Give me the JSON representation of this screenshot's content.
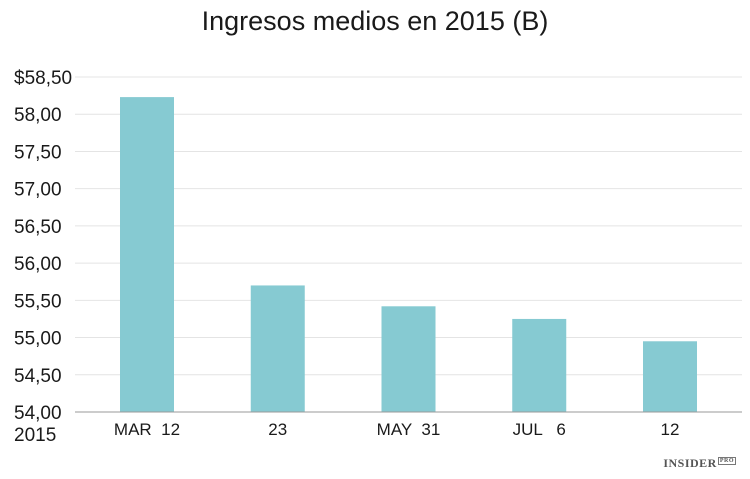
{
  "chart_data": {
    "type": "bar",
    "title": "Ingresos medios en 2015 (B)",
    "xlabel": "",
    "ylabel": "",
    "year_label": "2015",
    "categories": [
      "MAR  12",
      "23",
      "MAY  31",
      "JUL   6",
      "12"
    ],
    "values": [
      58.23,
      55.7,
      55.42,
      55.25,
      54.95
    ],
    "ylim": [
      54.0,
      58.5
    ],
    "yticks": [
      54.0,
      54.5,
      55.0,
      55.5,
      56.0,
      56.5,
      57.0,
      57.5,
      58.0,
      58.5
    ],
    "ytick_labels": [
      "54,00",
      "54,50",
      "55,00",
      "55,50",
      "56,00",
      "56,50",
      "57,00",
      "57,50",
      "58,00",
      "$58,50"
    ],
    "bar_color": "#86cad2",
    "grid": true
  },
  "branding": {
    "name": "INSIDER",
    "badge": "PRO"
  }
}
